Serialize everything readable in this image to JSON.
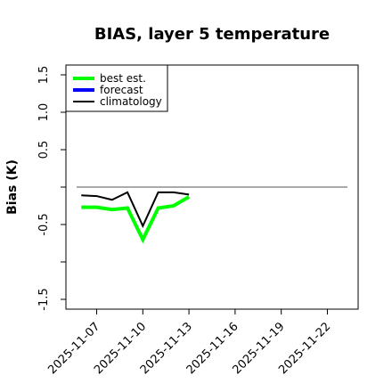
{
  "chart_data": {
    "type": "line",
    "title": "BIAS, layer 5 temperature",
    "xlabel": "",
    "ylabel": "Bias (K)",
    "ylim": [
      -1.6,
      1.6
    ],
    "y_ticks": [
      -1.5,
      -1.0,
      -0.5,
      0.0,
      0.5,
      1.0,
      1.5
    ],
    "y_tick_labels": [
      "-1.5",
      "",
      "-0.5",
      "",
      "0.5",
      "1.0",
      "1.5"
    ],
    "x_range": [
      "2025-11-05",
      "2025-11-24"
    ],
    "x_ticks": [
      "2025-11-07",
      "2025-11-10",
      "2025-11-13",
      "2025-11-16",
      "2025-11-19",
      "2025-11-22"
    ],
    "x_tick_colors": [
      "#000000",
      "#000000",
      "#228B22",
      "#000000",
      "#000000",
      "#000000"
    ],
    "reference_line": 0.0,
    "legend_position": "top-left",
    "series": [
      {
        "name": "best est.",
        "color": "#00ff00",
        "x": [
          "2025-11-06",
          "2025-11-07",
          "2025-11-08",
          "2025-11-09",
          "2025-11-10",
          "2025-11-11",
          "2025-11-12",
          "2025-11-13"
        ],
        "values": [
          -0.27,
          -0.27,
          -0.3,
          -0.28,
          -0.7,
          -0.28,
          -0.25,
          -0.13
        ]
      },
      {
        "name": "forecast",
        "color": "#0000ff",
        "x": [],
        "values": []
      },
      {
        "name": "climatology",
        "color": "#000000",
        "x": [
          "2025-11-06",
          "2025-11-07",
          "2025-11-08",
          "2025-11-09",
          "2025-11-10",
          "2025-11-11",
          "2025-11-12",
          "2025-11-13"
        ],
        "values": [
          -0.11,
          -0.12,
          -0.17,
          -0.07,
          -0.52,
          -0.07,
          -0.07,
          -0.1
        ]
      }
    ]
  }
}
